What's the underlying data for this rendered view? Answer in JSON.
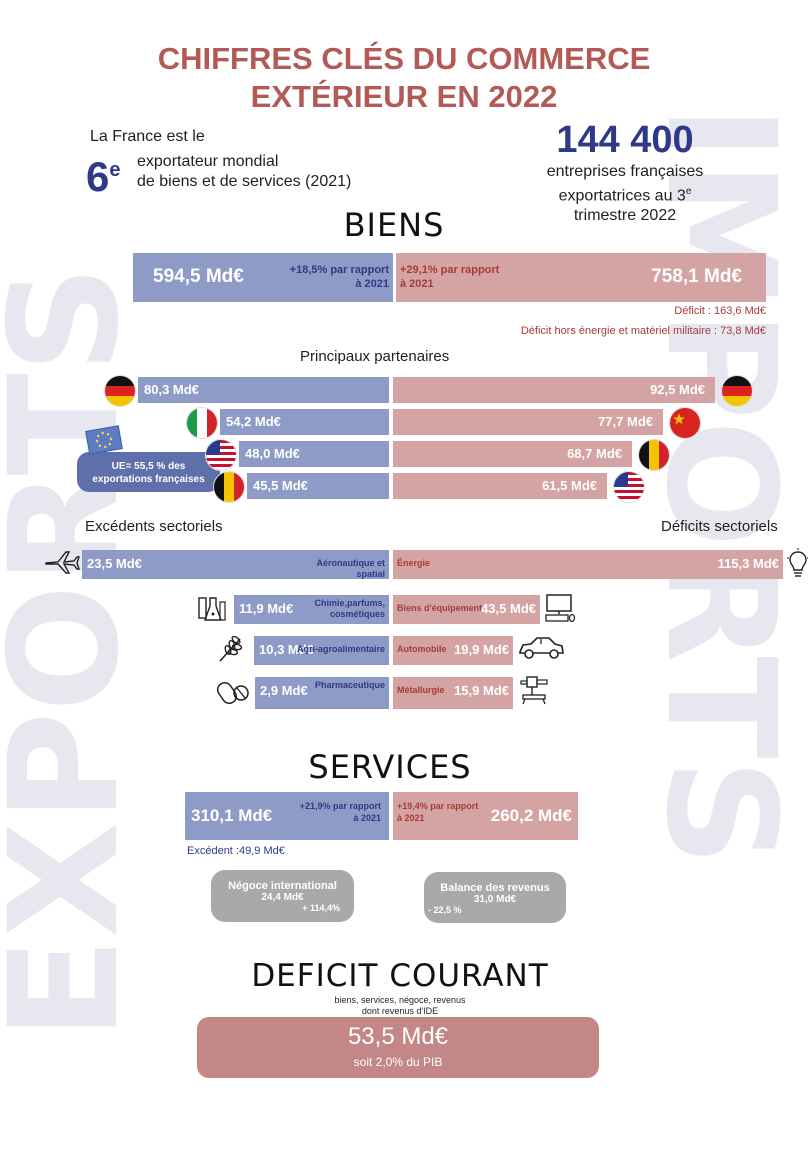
{
  "watermark": {
    "left": "EXPORTS",
    "right": "IMPORTS"
  },
  "title": {
    "line1": "CHIFFRES CLÉS DU COMMERCE",
    "line2": "EXTÉRIEUR EN 2022"
  },
  "rank": {
    "intro": "La France est le",
    "rank_num": "6",
    "rank_sup": "e",
    "line1": "exportateur mondial",
    "line2": "de biens et de services (2021)"
  },
  "firms": {
    "number": "144 400",
    "line1": "entreprises françaises",
    "line2": "exportatrices au 3",
    "sup": "e",
    "line3": "trimestre 2022"
  },
  "biens": {
    "heading": "BIENS",
    "exports_value": "594,5 Md€",
    "exports_growth_1": "+18,5% par rapport",
    "exports_growth_2": "à 2021",
    "imports_growth_1": "+29,1% par rapport",
    "imports_growth_2": "à 2021",
    "imports_value": "758,1 Md€",
    "deficit": "Déficit : 163,6 Md€",
    "deficit_hors": "Déficit hors énergie et matériel militaire : 73,8 Md€"
  },
  "partners": {
    "heading": "Principaux partenaires",
    "eu_note": "UE= 55,5 % des exportations françaises",
    "exports": [
      {
        "country": "Allemagne",
        "label": "80,3 Md€",
        "flag": "germany-flag"
      },
      {
        "country": "Italie",
        "label": "54,2 Md€",
        "flag": "italy-flag"
      },
      {
        "country": "États-Unis",
        "label": "48,0 Md€",
        "flag": "usa-flag"
      },
      {
        "country": "Belgique",
        "label": "45,5 Md€",
        "flag": "belgium-flag"
      }
    ],
    "imports": [
      {
        "country": "Allemagne",
        "label": "92,5 Md€",
        "flag": "germany-flag"
      },
      {
        "country": "Chine",
        "label": "77,7 Md€",
        "flag": "china-flag"
      },
      {
        "country": "Belgique",
        "label": "68,7 Md€",
        "flag": "belgium-flag"
      },
      {
        "country": "États-Unis",
        "label": "61,5 Md€",
        "flag": "usa-flag"
      }
    ]
  },
  "sectors": {
    "surplus_heading": "Excédents sectoriels",
    "deficit_heading": "Déficits sectoriels",
    "surplus": [
      {
        "value_label": "23,5 Md€",
        "name": "Aéronautique et spatial",
        "icon": "airplane-icon"
      },
      {
        "value_label": "11,9 Md€",
        "name": "Chimie,parfums, cosmétiques",
        "icon": "chemistry-icon"
      },
      {
        "value_label": "10,3 Md€",
        "name": "Agri-agroalimentaire",
        "icon": "wheat-icon"
      },
      {
        "value_label": "2,9 Md€",
        "name": "Pharmaceutique",
        "icon": "pills-icon"
      }
    ],
    "deficit": [
      {
        "value_label": "115,3 Md€",
        "name": "Énergie",
        "icon": "lightbulb-icon"
      },
      {
        "value_label": "43,5 Md€",
        "name": "Biens d'équipement",
        "icon": "computer-icon"
      },
      {
        "value_label": "19,9 Md€",
        "name": "Automobile",
        "icon": "car-icon"
      },
      {
        "value_label": "15,9 Md€",
        "name": "Métallurgie",
        "icon": "machine-icon"
      }
    ]
  },
  "services": {
    "heading": "SERVICES",
    "exports_value": "310,1 Md€",
    "exports_growth_1": "+21,9% par rapport",
    "exports_growth_2": "à 2021",
    "imports_growth_1": "+19,4% par rapport",
    "imports_growth_2": "à 2021",
    "imports_value": "260,2 Md€",
    "surplus": "Excédent :49,9 Md€",
    "negoce_title": "Négoce international",
    "negoce_value": "24,4 Md€",
    "negoce_growth": "+ 114,4%",
    "revenus_title": "Balance des revenus",
    "revenus_value": "31,0 Md€",
    "revenus_growth": "- 22,5 %"
  },
  "deficit_courant": {
    "heading": "DEFICIT COURANT",
    "sub1": "biens, services, négoce, revenus",
    "sub2": "dont revenus d'IDE",
    "value": "53,5 Md€",
    "pib": "soit 2,0% du PIB"
  },
  "colors": {
    "export": "#8f9bc7",
    "import": "#d4a3a3",
    "title": "#b35a57",
    "dark_blue": "#2e3a87",
    "dark_red": "#a73b3b",
    "deficit_box": "#c48787"
  },
  "chart_data": [
    {
      "type": "bar",
      "title": "BIENS",
      "categories": [
        "Exportations",
        "Importations"
      ],
      "values": [
        594.5,
        758.1
      ]
    },
    {
      "type": "bar",
      "title": "Principaux partenaires",
      "series": [
        {
          "name": "Exportations",
          "categories": [
            "Allemagne",
            "Italie",
            "États-Unis",
            "Belgique"
          ],
          "values": [
            80.3,
            54.2,
            48.0,
            45.5
          ]
        },
        {
          "name": "Importations",
          "categories": [
            "Allemagne",
            "Chine",
            "Belgique",
            "États-Unis"
          ],
          "values": [
            92.5,
            77.7,
            68.7,
            61.5
          ]
        }
      ]
    },
    {
      "type": "bar",
      "title": "Excédents sectoriels",
      "categories": [
        "Aéronautique et spatial",
        "Chimie,parfums, cosmétiques",
        "Agri-agroalimentaire",
        "Pharmaceutique"
      ],
      "values": [
        23.5,
        11.9,
        10.3,
        2.9
      ]
    },
    {
      "type": "bar",
      "title": "Déficits sectoriels",
      "categories": [
        "Énergie",
        "Biens d'équipement",
        "Automobile",
        "Métallurgie"
      ],
      "values": [
        115.3,
        43.5,
        19.9,
        15.9
      ]
    },
    {
      "type": "bar",
      "title": "SERVICES",
      "categories": [
        "Exportations",
        "Importations"
      ],
      "values": [
        310.1,
        260.2
      ]
    }
  ]
}
